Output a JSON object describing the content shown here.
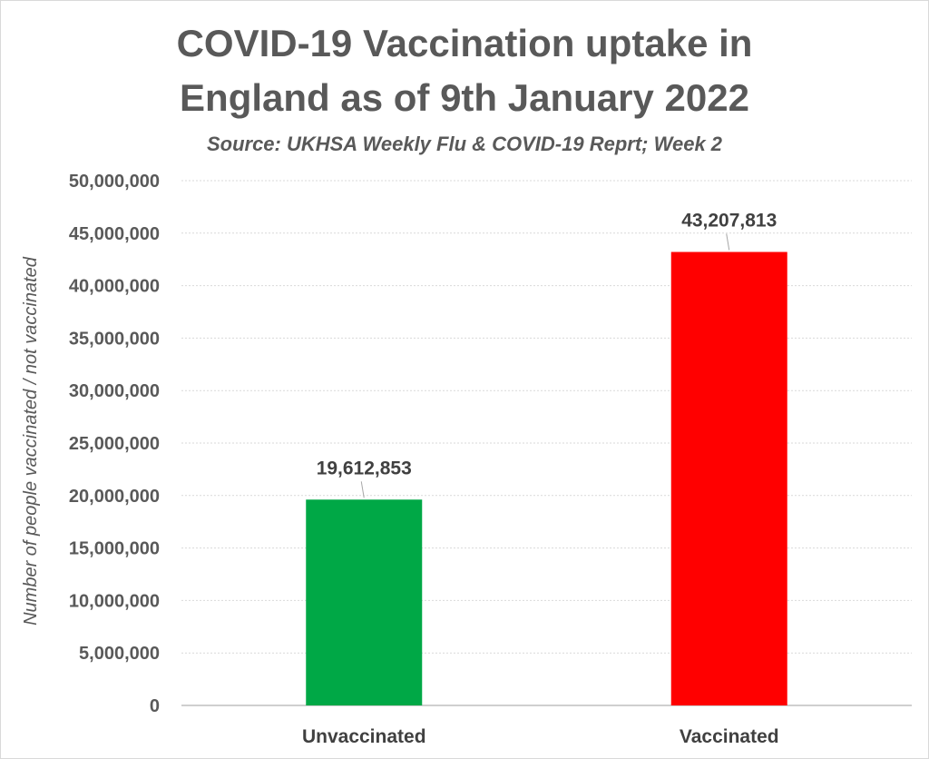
{
  "chart_data": {
    "type": "bar",
    "title_lines": [
      "COVID-19 Vaccination uptake in",
      "England as of 9th January 2022"
    ],
    "subtitle": "Source:  UKHSA Weekly Flu & COVID-19 Reprt; Week 2",
    "ylabel": "Number of people vaccinated / not vaccinated",
    "xlabel": "",
    "categories": [
      "Unvaccinated",
      "Vaccinated"
    ],
    "values": [
      19612853,
      43207813
    ],
    "data_labels": [
      "19,612,853",
      "43,207,813"
    ],
    "bar_colors": [
      "#00A846",
      "#FF0000"
    ],
    "ylim": [
      0,
      50000000
    ],
    "yticks": [
      0,
      5000000,
      10000000,
      15000000,
      20000000,
      25000000,
      30000000,
      35000000,
      40000000,
      45000000,
      50000000
    ],
    "ytick_labels": [
      "0",
      "5,000,000",
      "10,000,000",
      "15,000,000",
      "20,000,000",
      "25,000,000",
      "30,000,000",
      "35,000,000",
      "40,000,000",
      "45,000,000",
      "50,000,000"
    ],
    "grid": true,
    "legend": "none"
  }
}
